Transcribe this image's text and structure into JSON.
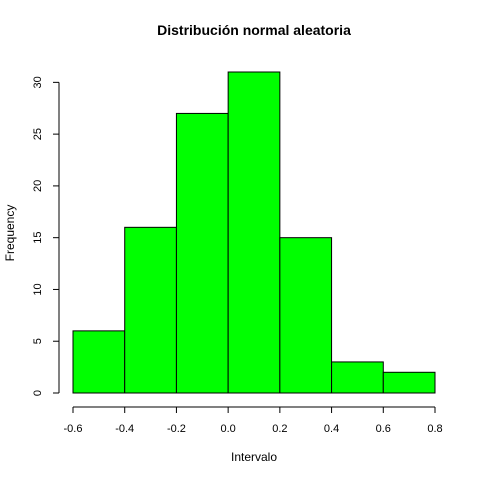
{
  "chart_data": {
    "type": "bar",
    "subtype": "histogram",
    "title": "Distribución normal aleatoria",
    "xlabel": "Intervalo",
    "ylabel": "Frequency",
    "bins": [
      {
        "start": -0.6,
        "end": -0.4,
        "count": 6
      },
      {
        "start": -0.4,
        "end": -0.2,
        "count": 16
      },
      {
        "start": -0.2,
        "end": 0.0,
        "count": 27
      },
      {
        "start": 0.0,
        "end": 0.2,
        "count": 31
      },
      {
        "start": 0.2,
        "end": 0.4,
        "count": 15
      },
      {
        "start": 0.4,
        "end": 0.6,
        "count": 3
      },
      {
        "start": 0.6,
        "end": 0.8,
        "count": 2
      }
    ],
    "x_ticks": [
      "-0.6",
      "-0.4",
      "-0.2",
      "0.0",
      "0.2",
      "0.4",
      "0.6",
      "0.8"
    ],
    "y_ticks": [
      "0",
      "5",
      "10",
      "15",
      "20",
      "25",
      "30"
    ],
    "xlim": [
      -0.6,
      0.8
    ],
    "ylim": [
      0,
      30
    ],
    "bar_color": "#00ff00",
    "bar_edge_color": "#000000",
    "grid": false,
    "legend": "none"
  }
}
